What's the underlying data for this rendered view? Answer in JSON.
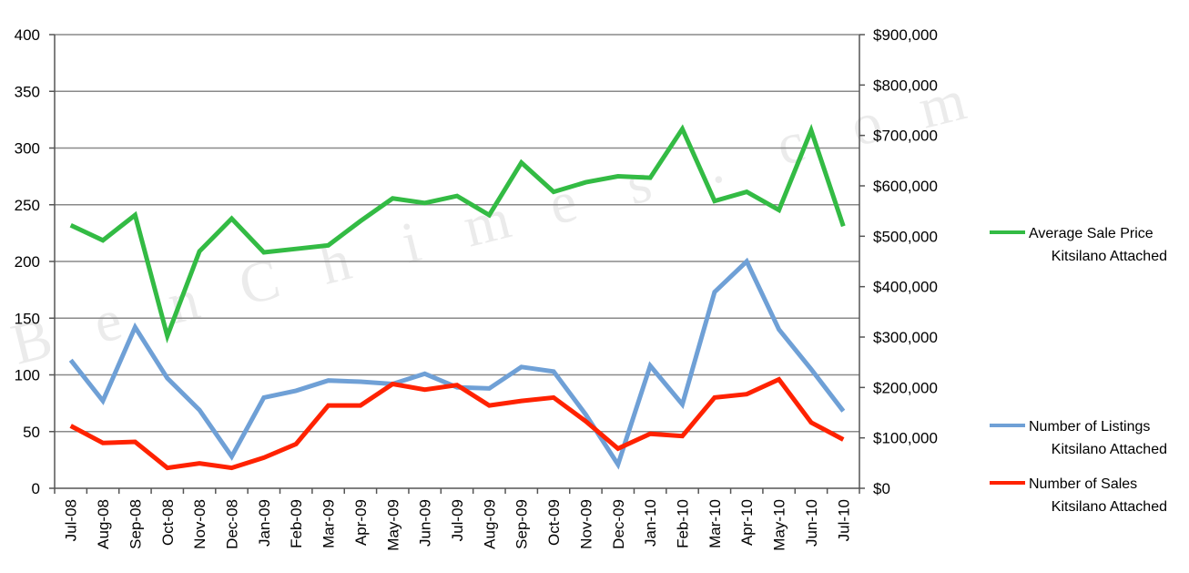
{
  "chart_data": {
    "type": "line",
    "categories": [
      "Jul-08",
      "Aug-08",
      "Sep-08",
      "Oct-08",
      "Nov-08",
      "Dec-08",
      "Jan-09",
      "Feb-09",
      "Mar-09",
      "Apr-09",
      "May-09",
      "Jun-09",
      "Jul-09",
      "Aug-09",
      "Sep-09",
      "Oct-09",
      "Nov-09",
      "Dec-09",
      "Jan-10",
      "Feb-10",
      "Mar-10",
      "Apr-10",
      "May-10",
      "Jun-10",
      "Jul-10"
    ],
    "y_left": {
      "ylim": [
        0,
        400
      ],
      "ticks": [
        0,
        50,
        100,
        150,
        200,
        250,
        300,
        350,
        400
      ],
      "tick_labels": [
        "0",
        "50",
        "100",
        "150",
        "200",
        "250",
        "300",
        "350",
        "400"
      ]
    },
    "y_right": {
      "ylim": [
        0,
        900000
      ],
      "ticks": [
        0,
        100000,
        200000,
        300000,
        400000,
        500000,
        600000,
        700000,
        800000,
        900000
      ],
      "tick_labels": [
        "$0",
        "$100,000",
        "$200,000",
        "$300,000",
        "$400,000",
        "$500,000",
        "$600,000",
        "$700,000",
        "$800,000",
        "$900,000"
      ]
    },
    "grid": true,
    "series": [
      {
        "name": "Average Sale Price Kitsilano Attached",
        "legend_lines": [
          "Average Sale Price",
          "Kitsilano Attached"
        ],
        "axis": "right",
        "color": "#33bb44",
        "values": [
          522000,
          492000,
          542000,
          302000,
          470000,
          535000,
          468000,
          475000,
          482000,
          530000,
          575000,
          566000,
          580000,
          542000,
          646000,
          588000,
          607000,
          619000,
          616000,
          713000,
          570000,
          588000,
          552000,
          710000,
          520000
        ]
      },
      {
        "name": "Number of Listings Kitsilano Attached",
        "legend_lines": [
          "Number of Listings",
          "Kitsilano Attached"
        ],
        "axis": "left",
        "color": "#6fa0d6",
        "values": [
          113,
          77,
          142,
          97,
          69,
          28,
          80,
          86,
          95,
          94,
          92,
          101,
          89,
          88,
          107,
          103,
          65,
          21,
          108,
          74,
          173,
          200,
          140,
          105,
          68
        ]
      },
      {
        "name": "Number of Sales Kitsilano Attached",
        "legend_lines": [
          "Number of Sales",
          "Kitsilano Attached"
        ],
        "axis": "left",
        "color": "#ff2200",
        "values": [
          55,
          40,
          41,
          18,
          22,
          18,
          27,
          39,
          73,
          73,
          92,
          87,
          91,
          73,
          77,
          80,
          59,
          35,
          48,
          46,
          80,
          83,
          96,
          58,
          43
        ]
      }
    ]
  },
  "watermark": "BenChimes.com",
  "watermark_letters": [
    "B",
    "e",
    "n",
    "C",
    "h",
    "i",
    "m",
    "e",
    "s",
    ".",
    "c",
    "o",
    "m"
  ]
}
